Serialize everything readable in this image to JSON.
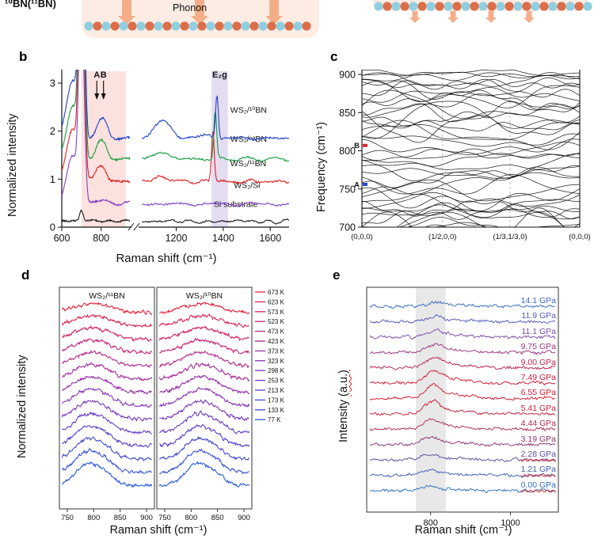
{
  "panel_a": {
    "material_label": "¹⁰BN(¹¹BN)",
    "phonon_label": "Phonon",
    "colors": {
      "background": "#fcece4",
      "atom_orange": "#dc6e4a",
      "atom_blue": "#8fcfe0",
      "arrow": "#f2a87f"
    }
  },
  "labels": {
    "panel_b": "b",
    "panel_c": "c",
    "panel_d": "d",
    "panel_e": "e"
  },
  "chart_data": [
    {
      "id": "panel_b",
      "type": "line",
      "xlabel": "Raman shift (cm⁻¹)",
      "ylabel": "Normalized intensity",
      "xticks": [
        600,
        800,
        1200,
        1400,
        1600
      ],
      "yticks": [
        0,
        1,
        2,
        3
      ],
      "xlim": [
        [
          600,
          950
        ],
        [
          1050,
          1680
        ]
      ],
      "ylim": [
        0,
        3.15
      ],
      "shaded_bands": [
        {
          "range": [
            700,
            925
          ],
          "color": "rgba(244,178,168,0.38)"
        },
        {
          "range": [
            1350,
            1420
          ],
          "color": "rgba(185,165,220,0.38)"
        }
      ],
      "annotations": [
        {
          "text": "A",
          "x": 778,
          "arrow": true
        },
        {
          "text": "B",
          "x": 812,
          "arrow": true
        },
        {
          "text": "E₂g",
          "x": 1385,
          "arrow": false
        }
      ],
      "series": [
        {
          "name": "Si substrate",
          "color": "#1a1a1a",
          "offset": 0.12,
          "noise": 0.018,
          "label_pos": [
            1360,
            0.42
          ],
          "peaks": [
            [
              700,
              9,
              0.22
            ],
            [
              770,
              30,
              0.03
            ]
          ]
        },
        {
          "name": "WS₂/Si",
          "color": "#8040c8",
          "offset": 0.48,
          "noise": 0.02,
          "label_pos": [
            1445,
            0.82
          ],
          "peaks": [
            [
              655,
              30,
              1.0
            ],
            [
              697,
              11,
              4.0
            ],
            [
              714,
              9,
              1.1
            ],
            [
              805,
              26,
              0.1
            ],
            [
              965,
              30,
              0.05
            ]
          ]
        },
        {
          "name": "WS₂/¹¹BN",
          "color": "#e02020",
          "offset": 0.95,
          "noise": 0.022,
          "label_pos": [
            1430,
            1.27
          ],
          "peaks": [
            [
              655,
              30,
              1.1
            ],
            [
              697,
              11,
              5.0
            ],
            [
              714,
              9,
              1.3
            ],
            [
              786,
              20,
              0.3
            ],
            [
              818,
              16,
              0.16
            ],
            [
              1135,
              32,
              0.1
            ],
            [
              1356,
              6,
              1.05
            ]
          ]
        },
        {
          "name": "WS₂/ⁿᵃBN",
          "color": "#189c40",
          "offset": 1.42,
          "noise": 0.022,
          "label_pos": [
            1430,
            1.78
          ],
          "peaks": [
            [
              655,
              30,
              1.1
            ],
            [
              697,
              11,
              5.0
            ],
            [
              714,
              9,
              1.4
            ],
            [
              791,
              20,
              0.32
            ],
            [
              820,
              16,
              0.18
            ],
            [
              1138,
              32,
              0.14
            ],
            [
              1366,
              6,
              1.0
            ]
          ]
        },
        {
          "name": "WS₂/¹⁰BN",
          "color": "#2040c8",
          "offset": 1.85,
          "noise": 0.022,
          "label_pos": [
            1430,
            2.38
          ],
          "peaks": [
            [
              655,
              30,
              1.2
            ],
            [
              697,
              11,
              5.0
            ],
            [
              714,
              9,
              1.5
            ],
            [
              796,
              20,
              0.34
            ],
            [
              824,
              16,
              0.2
            ],
            [
              1142,
              32,
              0.38
            ],
            [
              1373,
              6,
              0.92
            ],
            [
              1300,
              40,
              0.05
            ]
          ]
        }
      ],
      "seed": 11
    },
    {
      "id": "panel_c",
      "type": "line",
      "ylabel": "Frequency (cm⁻¹)",
      "yticks": [
        700,
        750,
        800,
        850,
        900
      ],
      "ylim": [
        693,
        908
      ],
      "xticklabels": [
        "(0,0,0)",
        "(1/2,0,0)",
        "(1/3,1/3,0)",
        "(0,0,0)"
      ],
      "xtick_pos": [
        0,
        0.37,
        0.68,
        1
      ],
      "markers": [
        {
          "text": "A",
          "freq": 756,
          "color": "#2343d6"
        },
        {
          "text": "B",
          "freq": 807,
          "color": "#dd2020"
        }
      ],
      "band_base_freqs": [
        695,
        698,
        701,
        704,
        708,
        712,
        716,
        720,
        725,
        730,
        735,
        741,
        747,
        753,
        759,
        765,
        771,
        777,
        783,
        789,
        795,
        801,
        807,
        813,
        819,
        825,
        831,
        837,
        843,
        849,
        854,
        859,
        863,
        867,
        871,
        875,
        879,
        883,
        887,
        891,
        895,
        899,
        903
      ],
      "line_color": "#0a0a0a",
      "seed": 5
    },
    {
      "id": "panel_d_left",
      "type": "line",
      "title": "WS₂/¹¹BN",
      "xlabel": "Raman shift (cm⁻¹)",
      "ylabel": "Normalized intensity",
      "xticks": [
        750,
        800,
        850,
        900
      ],
      "xlim": [
        737,
        913
      ],
      "peak_center": 786,
      "temperatures": [
        "673 K",
        "623 K",
        "573 K",
        "523 K",
        "473 K",
        "423 K",
        "373 K",
        "323 K",
        "298 K",
        "253 K",
        "213 K",
        "173 K",
        "133 K",
        "77 K"
      ],
      "colors": [
        "#e0203a",
        "#da1f4e",
        "#d01e62",
        "#c42076",
        "#b62388",
        "#a62698",
        "#962aa6",
        "#852eb2",
        "#7433bc",
        "#6338c4",
        "#523eca",
        "#4245d0",
        "#344ed6",
        "#2758da"
      ],
      "seed": 21
    },
    {
      "id": "panel_d_right",
      "type": "line",
      "title": "WS₂/¹⁰BN",
      "xticks": [
        750,
        800,
        850,
        900
      ],
      "xlim": [
        737,
        913
      ],
      "peak_center": 809,
      "seed": 22
    },
    {
      "id": "panel_e",
      "type": "line",
      "xlabel": "Raman shift (cm⁻¹)",
      "ylabel": "Intensity (a.u.)",
      "ylabel_main": "Intensity ",
      "ylabel_paren": "(a.u.)",
      "xticks": [
        800,
        1000
      ],
      "xlim": [
        640,
        1120
      ],
      "shaded_band": {
        "range": [
          763,
          838
        ],
        "color": "#d9d9d9"
      },
      "peak_center_base": 796,
      "peak_center_step": 1.8,
      "peak_width": 21,
      "series": [
        {
          "label": "14.1 GPa",
          "color": "#3a6abf",
          "peak_h": 5
        },
        {
          "label": "11.9 GPa",
          "color": "#5558b8",
          "peak_h": 6
        },
        {
          "label": "11.1 GPa",
          "color": "#7a48ae",
          "peak_h": 8
        },
        {
          "label": "9.75 GPa",
          "color": "#9c3380",
          "peak_h": 10
        },
        {
          "label": "9.00 GPa",
          "color": "#bc2450",
          "peak_h": 13
        },
        {
          "label": "7.49 GPa",
          "color": "#d01a34",
          "peak_h": 16
        },
        {
          "label": "6.55 GPa",
          "color": "#d41830",
          "peak_h": 17
        },
        {
          "label": "5.41 GPa",
          "color": "#c81e38",
          "peak_h": 15
        },
        {
          "label": "4.44 GPa",
          "color": "#b02a50",
          "peak_h": 12
        },
        {
          "label": "3.19 GPa",
          "color": "#8f3372",
          "peak_h": 9
        },
        {
          "label": "2.28 GPa",
          "color": "#5c4aa0",
          "peak_h": 7,
          "misspelled": true
        },
        {
          "label": "1.21 GPa",
          "color": "#4060b4",
          "peak_h": 6,
          "misspelled": true
        },
        {
          "label": "0.00 GPa",
          "color": "#2f6ec4",
          "peak_h": 5,
          "misspelled": true
        }
      ],
      "seed": 31
    }
  ]
}
